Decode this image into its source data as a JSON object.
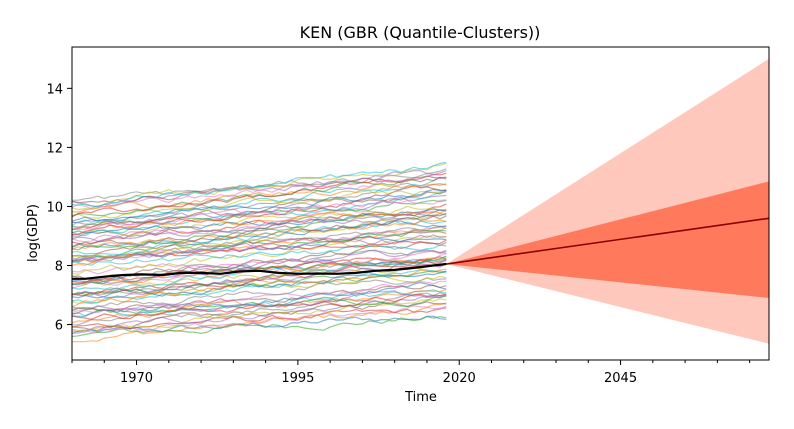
{
  "chart_data": {
    "type": "line",
    "title": "KEN (GBR (Quantile-Clusters))",
    "xlabel": "Time",
    "ylabel": "log(GDP)",
    "xlim": [
      1960,
      2068
    ],
    "ylim": [
      4.8,
      15.4
    ],
    "x_ticks": [
      1970,
      1995,
      2020,
      2045
    ],
    "y_ticks": [
      6,
      8,
      10,
      12,
      14
    ],
    "grid": false,
    "legend": "none",
    "history_years": [
      1960,
      2018
    ],
    "focus_series": {
      "name": "KEN",
      "color": "#000000",
      "x": [
        1960,
        1962,
        1965,
        1968,
        1971,
        1974,
        1977,
        1980,
        1983,
        1986,
        1989,
        1992,
        1995,
        1998,
        2001,
        2004,
        2007,
        2010,
        2013,
        2016,
        2018
      ],
      "values": [
        7.55,
        7.55,
        7.62,
        7.68,
        7.7,
        7.68,
        7.75,
        7.75,
        7.72,
        7.8,
        7.82,
        7.75,
        7.72,
        7.73,
        7.72,
        7.75,
        7.82,
        7.85,
        7.92,
        8.0,
        8.05
      ]
    },
    "cluster_series": {
      "count": 80,
      "ymin_first": 5.6,
      "ymax_first": 10.2,
      "ymin_last": 6.4,
      "ymax_last": 11.3
    },
    "forecast": {
      "x": [
        2018,
        2068
      ],
      "median": [
        8.05,
        9.6
      ],
      "inner_band_lower": [
        8.05,
        6.9
      ],
      "inner_band_upper": [
        8.05,
        10.85
      ],
      "outer_band_lower": [
        8.05,
        5.35
      ],
      "outer_band_upper": [
        8.05,
        15.0
      ],
      "median_color": "#8b0000",
      "inner_band_color": "#ff7a5c",
      "outer_band_color": "#ffc8bd"
    }
  }
}
